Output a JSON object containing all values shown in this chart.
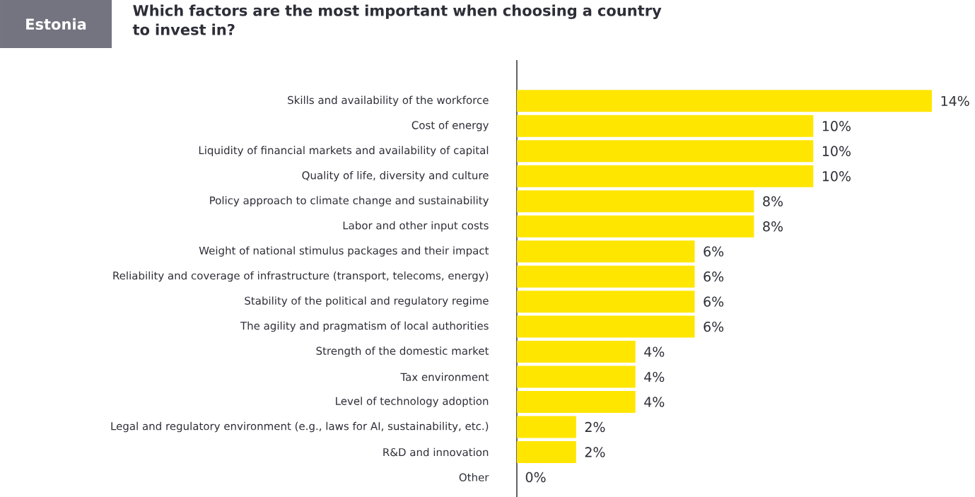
{
  "chart_data": {
    "type": "bar",
    "orientation": "horizontal",
    "title": "Which factors are the most important when choosing a country to invest in?",
    "annotations": [
      "Estonia"
    ],
    "categories": [
      "Skills and availability of the workforce",
      "Cost of energy",
      "Liquidity of financial markets and availability of capital",
      "Quality of life, diversity and culture",
      "Policy approach to climate change and sustainability",
      "Labor and other input costs",
      "Weight of national stimulus packages and their impact",
      "Reliability and coverage of infrastructure (transport, telecoms, energy)",
      "Stability of the political and regulatory regime",
      "The agility and pragmatism of local authorities",
      "Strength of the domestic market",
      "Tax environment",
      "Level of technology adoption",
      "Legal and regulatory environment (e.g., laws for AI, sustainability, etc.)",
      "R&D and innovation",
      "Other"
    ],
    "values": [
      14,
      10,
      10,
      10,
      8,
      8,
      6,
      6,
      6,
      6,
      4,
      4,
      4,
      2,
      2,
      0
    ],
    "value_labels": [
      "14%",
      "10%",
      "10%",
      "10%",
      "8%",
      "8%",
      "6%",
      "6%",
      "6%",
      "6%",
      "4%",
      "4%",
      "4%",
      "2%",
      "2%",
      "0%"
    ],
    "color": "#ffe600",
    "xlim": [
      0,
      14
    ]
  }
}
